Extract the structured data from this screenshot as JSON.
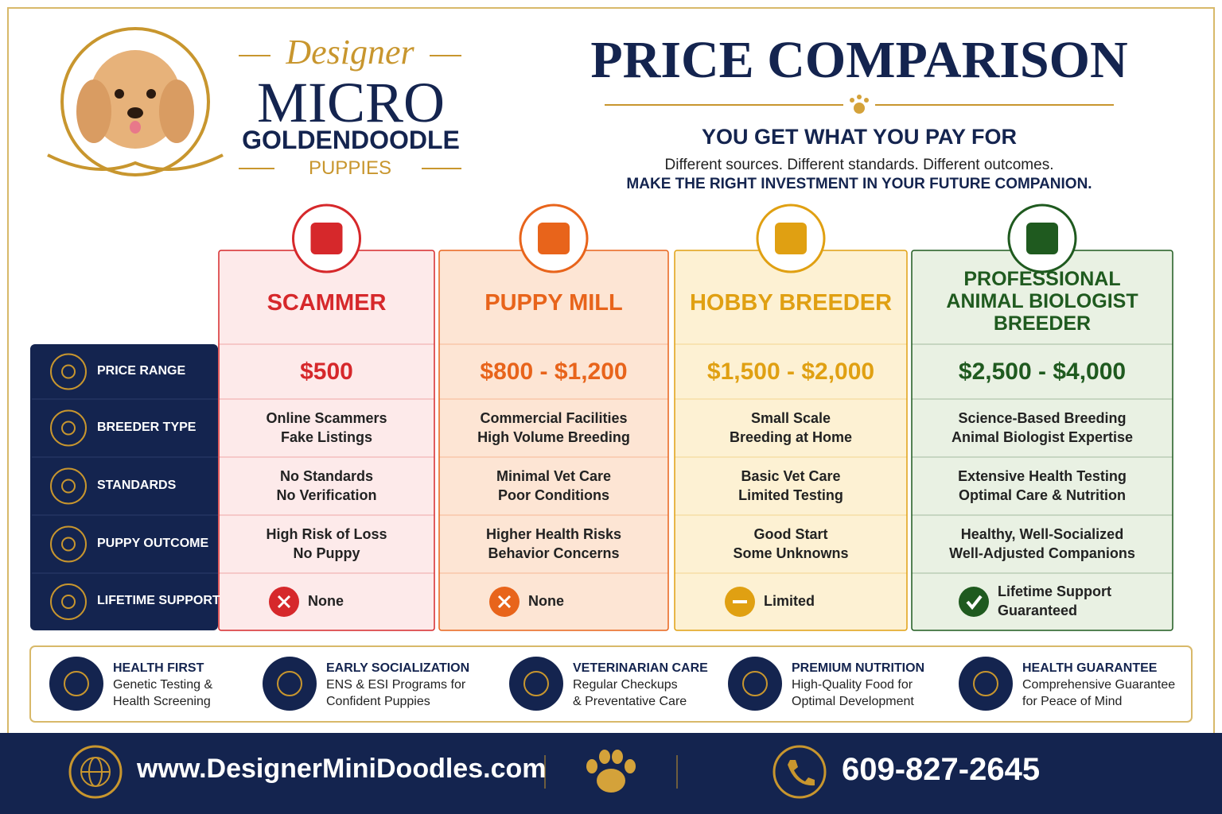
{
  "brand": {
    "designer": "Designer",
    "micro": "MICRO",
    "breed": "GOLDENDOODLE",
    "puppies": "PUPPIES"
  },
  "header": {
    "title": "PRICE COMPARISON",
    "subtitle": "YOU GET WHAT YOU PAY FOR",
    "tagline": "Different sources. Different standards. Different outcomes.",
    "cta": "MAKE THE RIGHT INVESTMENT IN YOUR FUTURE COMPANION."
  },
  "table": {
    "row_labels": [
      "PRICE RANGE",
      "BREEDER TYPE",
      "STANDARDS",
      "PUPPY OUTCOME",
      "LIFETIME SUPPORT"
    ],
    "columns": [
      {
        "name": [
          "SCAMMER"
        ],
        "color": "#d6282b",
        "bg": "#fdeaea",
        "price": "$500",
        "rows": [
          [
            "Online Scammers",
            "Fake Listings"
          ],
          [
            "No Standards",
            "No Verification"
          ],
          [
            "High Risk of Loss",
            "No Puppy"
          ]
        ],
        "support": [
          "None"
        ],
        "status": "x"
      },
      {
        "name": [
          "PUPPY MILL"
        ],
        "color": "#e8641b",
        "bg": "#fde5d4",
        "price": "$800 - $1,200",
        "rows": [
          [
            "Commercial Facilities",
            "High Volume Breeding"
          ],
          [
            "Minimal Vet Care",
            "Poor Conditions"
          ],
          [
            "Higher Health Risks",
            "Behavior Concerns"
          ]
        ],
        "support": [
          "None"
        ],
        "status": "x"
      },
      {
        "name": [
          "HOBBY BREEDER"
        ],
        "color": "#e0a012",
        "bg": "#fdf1d3",
        "price": "$1,500 - $2,000",
        "rows": [
          [
            "Small Scale",
            "Breeding at Home"
          ],
          [
            "Basic Vet Care",
            "Limited Testing"
          ],
          [
            "Good Start",
            "Some Unknowns"
          ]
        ],
        "support": [
          "Limited"
        ],
        "status": "minus"
      },
      {
        "name": [
          "PROFESSIONAL",
          "ANIMAL BIOLOGIST",
          "BREEDER"
        ],
        "color": "#1f5a1f",
        "bg": "#e9f1e3",
        "price": "$2,500 - $4,000",
        "rows": [
          [
            "Science-Based Breeding",
            "Animal Biologist Expertise"
          ],
          [
            "Extensive Health Testing",
            "Optimal Care & Nutrition"
          ],
          [
            "Healthy, Well-Socialized",
            "Well-Adjusted Companions"
          ]
        ],
        "support": [
          "Lifetime Support",
          "Guaranteed"
        ],
        "status": "check"
      }
    ]
  },
  "features": [
    {
      "title": "HEALTH FIRST",
      "lines": [
        "Genetic Testing &",
        "Health Screening"
      ]
    },
    {
      "title": "EARLY SOCIALIZATION",
      "lines": [
        "ENS & ESI Programs for",
        "Confident Puppies"
      ]
    },
    {
      "title": "VETERINARIAN CARE",
      "lines": [
        "Regular Checkups",
        "& Preventative Care"
      ]
    },
    {
      "title": "PREMIUM NUTRITION",
      "lines": [
        "High-Quality Food for",
        "Optimal Development"
      ]
    },
    {
      "title": "HEALTH GUARANTEE",
      "lines": [
        "Comprehensive Guarantee",
        "for Peace of Mind"
      ]
    }
  ],
  "footer": {
    "website": "www.DesignerMiniDoodles.com",
    "phone": "609-827-2645"
  }
}
